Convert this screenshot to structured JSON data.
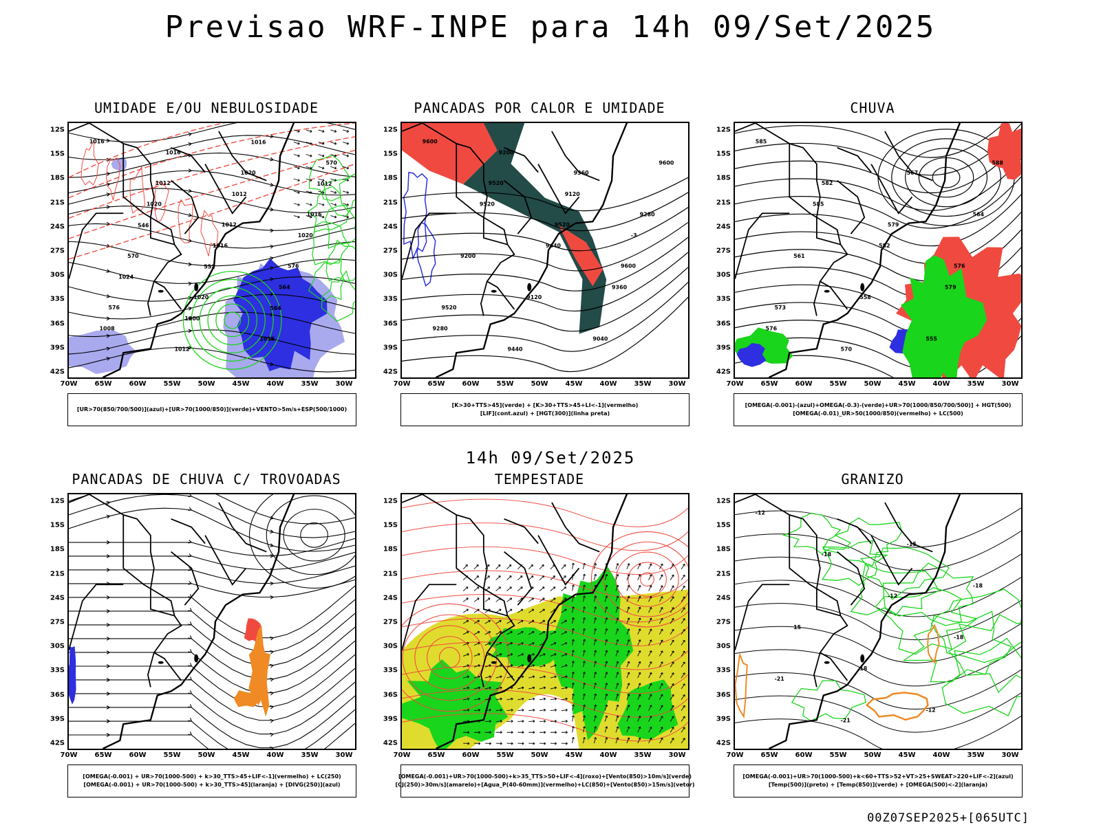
{
  "title": "Previsao WRF-INPE  para 14h 09/Set/2025",
  "mid_time": "14h 09/Set/2025",
  "run_stamp": "00Z07SEP2025+[065UTC]",
  "lat_ticks": [
    "12S",
    "15S",
    "18S",
    "21S",
    "24S",
    "27S",
    "30S",
    "33S",
    "36S",
    "39S",
    "42S"
  ],
  "lon_ticks": [
    "70W",
    "65W",
    "60W",
    "55W",
    "50W",
    "45W",
    "40W",
    "35W",
    "30W"
  ],
  "colors": {
    "blue": "#2d2fe0",
    "lightblue": "#a9a9ee",
    "green": "#19d51b",
    "red": "#f04a40",
    "darkteal": "#234b48",
    "yellow": "#e0dc2e",
    "orange": "#ef8a24"
  },
  "panels": [
    {
      "title": "UMIDADE E/OU NEBULOSIDADE",
      "legend": [
        "[UR>70(850/700/500)](azul)+[UR>70(1000/850)](verde)+VENTO>5m/s+ESP(500/1000)"
      ],
      "labels": [
        "1016",
        "1012",
        "1012",
        "576",
        "576",
        "1012",
        "1020",
        "1016",
        "570",
        "1020",
        "1016",
        "570",
        "1020",
        "1016",
        "564",
        "1008",
        "1016",
        "1012",
        "1020",
        "1024",
        "1000",
        "1016",
        "1012",
        "546",
        "552",
        "564"
      ]
    },
    {
      "title": "PANCADAS POR CALOR E UMIDADE",
      "legend": [
        "[K>30+TTS>45](verde) + [K>30+TTS>45+LI<-1](vermelho)",
        "[LIF](cont.azul) + [HGT(300)](linha preta)"
      ],
      "labels": [
        "9600",
        "9520",
        "9520",
        "9600",
        "9520",
        "9440",
        "9360",
        "9280",
        "9200",
        "9120",
        "9040",
        "9600",
        "9520",
        "9440",
        "9360",
        "9280",
        "9200",
        "9120",
        "-3"
      ]
    },
    {
      "title": "CHUVA",
      "legend": [
        "[OMEGA(-0.001)-(azul)+OMEGA(-0.3)-(verde)+UR>70(1000/850/700/500)] + HGT(500)",
        "[OMEGA(-0.01)_UR>50(1000/850)(vermelho) + LC(500)"
      ],
      "labels": [
        "585",
        "582",
        "579",
        "576",
        "573",
        "570",
        "567",
        "564",
        "561",
        "558",
        "555",
        "588",
        "585",
        "582",
        "579",
        "576"
      ]
    },
    {
      "title": "PANCADAS DE CHUVA C/ TROVOADAS",
      "legend": [
        "[OMEGA(-0.001) + UR>70(1000-500) + k>30_TTS>45+LIF<-1](vermelho) + LC(250)",
        "[OMEGA(-0.001) + UR>70(1000-500) + k>30_TTS>45](laranja) + [DIVG(250)](azul)"
      ],
      "labels": []
    },
    {
      "title": "TEMPESTADE",
      "legend": [
        "[OMEGA(-0.001)+UR>70(1000-500)+k>35_TTS>50+LIF<-4](roxo)+[Vento(850)>10m/s](verde)",
        "[CJ(250)>30m/s](amarelo)+[Agua_P(40-60mm)](vermelho)+LC(850)+[Vento(850)>15m/s](vetor)"
      ],
      "labels": []
    },
    {
      "title": "GRANIZO",
      "legend": [
        "[OMEGA(-0.001)+UR>70(1000-500)+k<60+TTS>52+VT>25+SWEAT>220+LIF<-2](azul)",
        "[Temp(500)](preto) + [Temp(850)](verde) + [OMEGA(500)<-2](laranja)"
      ],
      "labels": [
        "-12",
        "-18",
        "-12",
        "-18",
        "-21",
        "-21",
        "-15",
        "-18",
        "15",
        "18",
        "-12"
      ]
    }
  ]
}
